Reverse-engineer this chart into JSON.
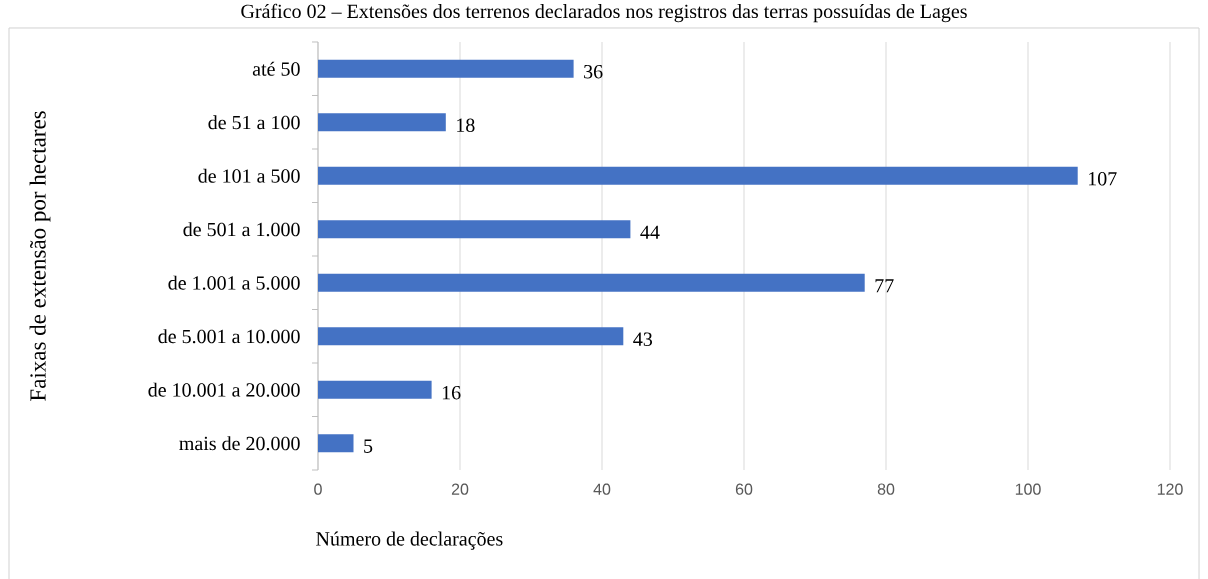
{
  "chart_data": {
    "type": "bar",
    "orientation": "horizontal",
    "title": "Gráfico 02 – Extensões dos terrenos declarados nos registros das terras possuídas de Lages",
    "xlabel": "Número de declarações",
    "ylabel": "Faixas de extensão por hectares",
    "categories": [
      "até 50",
      "de 51 a 100",
      "de 101 a 500",
      "de 501 a 1.000",
      "de 1.001 a 5.000",
      "de 5.001 a 10.000",
      "de 10.001 a 20.000",
      "mais de 20.000"
    ],
    "values": [
      36,
      18,
      107,
      44,
      77,
      43,
      16,
      5
    ],
    "color": "#4472c4",
    "xlim": [
      0,
      120
    ],
    "xticks": [
      0,
      20,
      40,
      60,
      80,
      100,
      120
    ],
    "grid": "x",
    "data_labels": true
  }
}
